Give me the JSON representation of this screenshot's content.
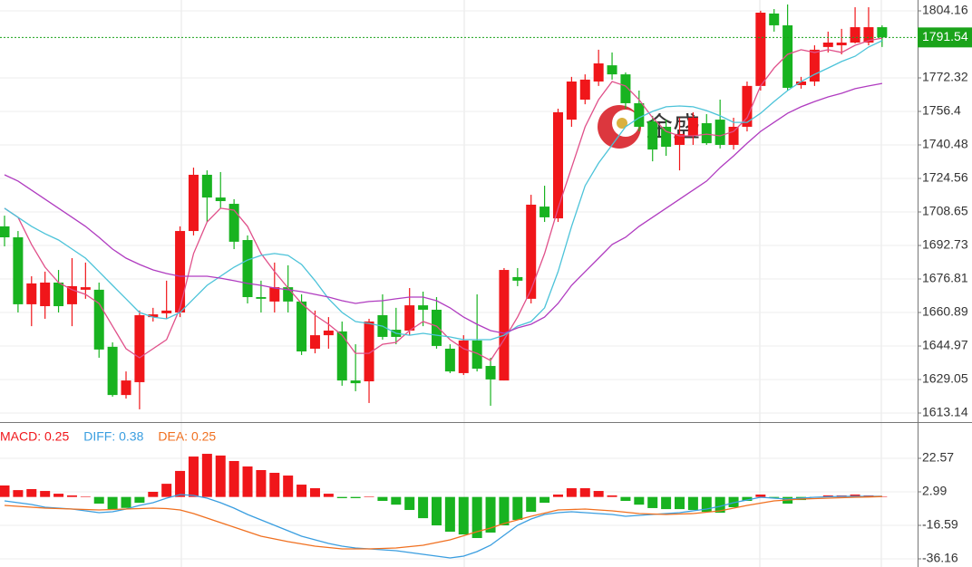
{
  "chart_data": [
    {
      "type": "candlestick",
      "up_color": "#f0161a",
      "down_color": "#18b320",
      "open": [
        1701.8,
        1696.6,
        1664.8,
        1663.9,
        1675.1,
        1664.8,
        1671.7,
        1671.7,
        1644.6,
        1621.7,
        1627.8,
        1658.7,
        1660.5,
        1660.9,
        1699.6,
        1726.3,
        1715.5,
        1712.5,
        1695.3,
        1668.2,
        1666.1,
        1672.9,
        1666.1,
        1643.7,
        1650.1,
        1651.9,
        1628.6,
        1628.2,
        1659.6,
        1652.7,
        1652.3,
        1664.3,
        1662.2,
        1643.7,
        1632.1,
        1647.6,
        1635.5,
        1628.6,
        1677.7,
        1667.4,
        1711.2,
        1705.6,
        1752.5,
        1762.0,
        1770.6,
        1778.3,
        1774.0,
        1760.3,
        1751.7,
        1749.1,
        1740.5,
        1744.8,
        1750.8,
        1752.5,
        1740.5,
        1749.1,
        1768.5,
        1802.9,
        1797.3,
        1768.9,
        1770.6,
        1787.0,
        1787.8,
        1789.1,
        1789.1,
        1796.4
      ],
      "close": [
        1696.6,
        1664.8,
        1674.7,
        1675.1,
        1663.9,
        1673.4,
        1672.9,
        1643.3,
        1621.7,
        1628.6,
        1659.6,
        1660.0,
        1661.8,
        1699.6,
        1726.3,
        1715.5,
        1713.8,
        1694.5,
        1668.2,
        1667.4,
        1672.9,
        1666.1,
        1642.4,
        1650.1,
        1652.3,
        1628.6,
        1627.3,
        1656.6,
        1649.3,
        1649.3,
        1664.3,
        1662.2,
        1645.0,
        1632.9,
        1647.6,
        1634.2,
        1629.1,
        1681.1,
        1676.0,
        1712.1,
        1706.1,
        1756.0,
        1770.6,
        1771.5,
        1779.2,
        1774.0,
        1760.3,
        1749.1,
        1738.3,
        1739.6,
        1745.7,
        1753.4,
        1741.3,
        1740.5,
        1749.1,
        1768.5,
        1803.3,
        1797.3,
        1767.6,
        1770.6,
        1785.7,
        1789.1,
        1789.1,
        1796.4,
        1796.4,
        1791.54
      ],
      "high": [
        1706.9,
        1699.6,
        1678.1,
        1680.3,
        1681.1,
        1686.7,
        1684.6,
        1675.1,
        1646.7,
        1632.9,
        1661.8,
        1663.1,
        1676.0,
        1701.8,
        1729.7,
        1728.4,
        1727.6,
        1714.7,
        1697.5,
        1676.0,
        1684.6,
        1683.3,
        1669.5,
        1661.8,
        1658.7,
        1656.6,
        1645.8,
        1657.9,
        1669.5,
        1663.1,
        1672.5,
        1670.8,
        1668.2,
        1645.8,
        1650.1,
        1669.5,
        1639.4,
        1682.0,
        1682.0,
        1716.8,
        1721.1,
        1757.7,
        1772.8,
        1774.0,
        1785.7,
        1784.4,
        1774.9,
        1766.3,
        1754.3,
        1752.5,
        1753.4,
        1756.0,
        1755.1,
        1762.0,
        1753.4,
        1770.6,
        1804.2,
        1805.0,
        1807.2,
        1772.8,
        1787.8,
        1794.3,
        1795.6,
        1805.9,
        1805.9,
        1797.3
      ],
      "low": [
        1692.3,
        1660.9,
        1654.4,
        1657.9,
        1660.9,
        1654.4,
        1667.4,
        1639.4,
        1620.9,
        1620.0,
        1614.9,
        1656.6,
        1657.9,
        1658.7,
        1697.5,
        1703.9,
        1710.4,
        1691.0,
        1665.2,
        1660.9,
        1660.9,
        1660.9,
        1640.7,
        1641.5,
        1643.7,
        1626.1,
        1623.5,
        1617.9,
        1648.0,
        1645.8,
        1650.1,
        1654.4,
        1643.7,
        1632.1,
        1631.2,
        1632.9,
        1616.6,
        1628.6,
        1673.4,
        1665.2,
        1703.9,
        1703.9,
        1749.1,
        1759.8,
        1768.5,
        1771.5,
        1757.7,
        1746.9,
        1732.7,
        1735.3,
        1728.4,
        1740.5,
        1740.5,
        1738.8,
        1738.3,
        1746.9,
        1766.3,
        1794.3,
        1766.3,
        1767.2,
        1768.5,
        1784.4,
        1783.5,
        1788.7,
        1787.8,
        1787.0
      ],
      "series": [
        {
          "color": "#e0508a",
          "values": [
            1710.4,
            1706.1,
            1693.2,
            1682.4,
            1675.1,
            1671.7,
            1669.5,
            1665.2,
            1654.4,
            1643.7,
            1639.4,
            1643.7,
            1648.0,
            1663.1,
            1688.9,
            1703.9,
            1710.4,
            1709.5,
            1701.8,
            1688.9,
            1680.3,
            1672.5,
            1665.2,
            1659.6,
            1655.3,
            1650.1,
            1641.5,
            1641.5,
            1645.8,
            1646.7,
            1652.3,
            1656.6,
            1654.4,
            1648.0,
            1643.7,
            1641.5,
            1638.1,
            1648.0,
            1658.7,
            1671.7,
            1688.9,
            1710.4,
            1729.7,
            1749.1,
            1762.0,
            1770.6,
            1768.5,
            1762.0,
            1753.4,
            1746.9,
            1744.8,
            1744.8,
            1745.6,
            1744.8,
            1746.9,
            1753.4,
            1768.5,
            1777.0,
            1783.5,
            1785.7,
            1784.4,
            1785.7,
            1784.4,
            1787.8,
            1790.0,
            1791.2
          ]
        },
        {
          "color": "#4cc3d9",
          "values": [
            1710.4,
            1706.1,
            1701.8,
            1698.3,
            1695.3,
            1691.0,
            1686.7,
            1680.3,
            1673.8,
            1667.4,
            1660.9,
            1658.7,
            1657.9,
            1660.9,
            1667.4,
            1673.8,
            1678.1,
            1682.4,
            1685.8,
            1688.0,
            1688.9,
            1688.0,
            1683.7,
            1676.0,
            1667.4,
            1660.9,
            1656.6,
            1655.7,
            1654.4,
            1651.0,
            1650.1,
            1651.0,
            1650.1,
            1649.3,
            1648.0,
            1648.0,
            1648.0,
            1650.1,
            1654.4,
            1656.6,
            1663.1,
            1680.3,
            1701.8,
            1721.1,
            1731.9,
            1740.5,
            1749.1,
            1753.4,
            1756.4,
            1758.6,
            1759.0,
            1758.6,
            1756.8,
            1754.3,
            1751.2,
            1751.2,
            1755.5,
            1761.1,
            1766.3,
            1770.6,
            1774.0,
            1777.0,
            1780.1,
            1782.6,
            1787.0,
            1790.0
          ]
        },
        {
          "color": "#b03cc0",
          "values": [
            1726.3,
            1723.3,
            1719.0,
            1714.7,
            1710.4,
            1706.1,
            1701.8,
            1696.6,
            1691.0,
            1686.7,
            1683.7,
            1681.1,
            1679.4,
            1678.1,
            1678.1,
            1678.1,
            1677.2,
            1676.0,
            1674.7,
            1673.8,
            1672.5,
            1671.7,
            1670.8,
            1669.5,
            1668.2,
            1666.5,
            1665.2,
            1666.1,
            1666.5,
            1667.4,
            1668.2,
            1668.2,
            1666.5,
            1663.1,
            1658.7,
            1655.3,
            1652.3,
            1651.0,
            1653.6,
            1655.3,
            1658.7,
            1665.2,
            1673.8,
            1680.3,
            1686.7,
            1693.2,
            1696.6,
            1701.8,
            1706.1,
            1710.4,
            1714.7,
            1719.0,
            1723.3,
            1729.7,
            1735.3,
            1741.3,
            1746.9,
            1751.2,
            1755.5,
            1758.6,
            1761.1,
            1763.3,
            1765.0,
            1767.2,
            1768.5,
            1769.7
          ]
        }
      ],
      "ylim": [
        1608.84,
        1809.32
      ],
      "yticks": [
        1804.16,
        1772.32,
        1756.4,
        1740.48,
        1724.56,
        1708.65,
        1692.73,
        1676.81,
        1660.89,
        1644.97,
        1629.05,
        1613.14
      ],
      "last_price": 1791.54,
      "last_price_color": "#1aa31a",
      "watermark": "金盛"
    },
    {
      "type": "macd",
      "up_color": "#f0161a",
      "down_color": "#18b320",
      "values": [
        6.7,
        4.0,
        4.6,
        3.5,
        1.9,
        0.9,
        0.3,
        -3.9,
        -7.1,
        -6.4,
        -3.4,
        3.0,
        7.7,
        15.2,
        23.6,
        25.2,
        24.2,
        21.0,
        17.8,
        15.7,
        14.1,
        12.5,
        7.2,
        5.1,
        1.9,
        -0.7,
        -0.7,
        0.3,
        -2.3,
        -4.5,
        -7.6,
        -12.4,
        -16.6,
        -20.3,
        -21.9,
        -24.0,
        -20.8,
        -16.6,
        -13.4,
        -8.7,
        -3.4,
        1.4,
        5.1,
        5.1,
        3.5,
        0.9,
        -2.3,
        -4.5,
        -6.5,
        -7.1,
        -7.1,
        -7.6,
        -8.7,
        -9.2,
        -6.0,
        -2.3,
        1.4,
        -0.5,
        -3.9,
        -1.8,
        -0.2,
        0.9,
        0.9,
        1.4,
        0.9,
        0.25
      ],
      "series": [
        {
          "name": "DIFF",
          "color": "#3a9ee0",
          "values": [
            -2.3,
            -3.36,
            -4.42,
            -6.01,
            -6.54,
            -7.06,
            -8.12,
            -9.18,
            -8.65,
            -7.06,
            -4.95,
            -3.36,
            -0.71,
            1.4,
            0.87,
            -0.71,
            -3.36,
            -6.54,
            -10.24,
            -13.42,
            -16.59,
            -19.77,
            -22.94,
            -25.06,
            -27.17,
            -28.76,
            -29.82,
            -30.35,
            -30.88,
            -31.41,
            -32.47,
            -33.52,
            -34.58,
            -35.64,
            -34.58,
            -31.94,
            -28.23,
            -22.41,
            -16.59,
            -12.89,
            -10.24,
            -9.18,
            -8.65,
            -9.18,
            -9.71,
            -10.24,
            -11.3,
            -10.77,
            -10.24,
            -9.71,
            -9.18,
            -8.12,
            -7.06,
            -5.48,
            -3.36,
            -1.77,
            -0.19,
            -0.71,
            -1.24,
            -0.71,
            -0.19,
            0.08,
            0.34,
            0.34,
            0.34,
            0.38
          ]
        },
        {
          "name": "DEA",
          "color": "#f07020",
          "values": [
            -4.95,
            -5.48,
            -6.01,
            -6.54,
            -6.8,
            -7.06,
            -7.33,
            -7.59,
            -7.33,
            -7.06,
            -6.8,
            -6.54,
            -6.8,
            -7.59,
            -9.71,
            -12.36,
            -15.0,
            -17.65,
            -20.29,
            -22.94,
            -24.53,
            -26.11,
            -27.44,
            -28.76,
            -29.56,
            -30.35,
            -30.35,
            -30.35,
            -30.08,
            -29.82,
            -29.03,
            -28.23,
            -26.64,
            -25.06,
            -22.68,
            -20.29,
            -18.18,
            -15.53,
            -13.42,
            -11.3,
            -9.45,
            -7.59,
            -7.33,
            -7.06,
            -7.59,
            -8.12,
            -8.92,
            -9.71,
            -9.97,
            -10.24,
            -9.97,
            -9.71,
            -8.92,
            -8.12,
            -6.54,
            -4.95,
            -3.63,
            -2.3,
            -1.77,
            -1.24,
            -0.98,
            -0.71,
            -0.45,
            -0.19,
            -0.03,
            0.25
          ]
        }
      ],
      "legend": [
        "MACD: 0.25",
        "DIFF: 0.38",
        "DEA: 0.25"
      ],
      "legend_colors": [
        "#f0161a",
        "#3a9ee0",
        "#f07020"
      ],
      "ylim": [
        -40.92,
        42.68
      ],
      "yticks": [
        22.57,
        2.99,
        -16.59,
        -36.16
      ]
    }
  ]
}
